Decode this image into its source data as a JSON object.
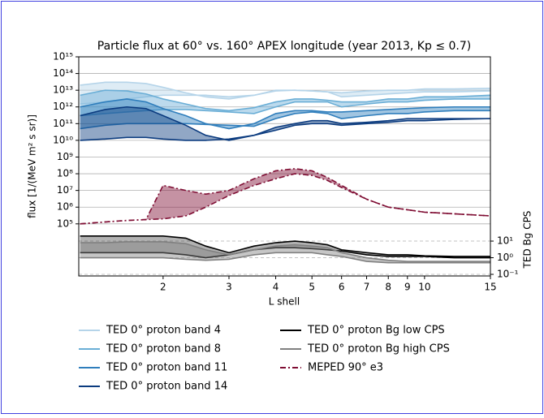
{
  "chart_data": {
    "type": "line",
    "title": "Particle flux at 60° vs. 160° APEX longitude (year 2013, Kp ≤ 0.7)",
    "x_label": "L shell",
    "y_label": "flux [1/(MeV m² s sr)]",
    "y2_label": "TED Bg CPS",
    "xscale": "log",
    "yscale": "log",
    "y2scale": "log",
    "grid": true,
    "y2_grid": "dashed",
    "xlim": [
      1.19,
      15
    ],
    "ylim": [
      76,
      1000000000000000.0
    ],
    "y2lim": [
      0.08,
      1200000000000.0
    ],
    "xticks": [
      2,
      3,
      4,
      5,
      6,
      7,
      8,
      9,
      10,
      15
    ],
    "yticks": [
      {
        "value": 100000.0,
        "label": "10⁵"
      },
      {
        "value": 1000000.0,
        "label": "10⁶"
      },
      {
        "value": 10000000.0,
        "label": "10⁷"
      },
      {
        "value": 100000000.0,
        "label": "10⁸"
      },
      {
        "value": 1000000000.0,
        "label": "10⁹"
      },
      {
        "value": 10000000000.0,
        "label": "10¹⁰"
      },
      {
        "value": 100000000000.0,
        "label": "10¹¹"
      },
      {
        "value": 1000000000000.0,
        "label": "10¹²"
      },
      {
        "value": 10000000000000.0,
        "label": "10¹³"
      },
      {
        "value": 100000000000000.0,
        "label": "10¹⁴"
      },
      {
        "value": 1000000000000000.0,
        "label": "10¹⁵"
      }
    ],
    "y2ticks": [
      {
        "value": 10,
        "label": "10¹"
      },
      {
        "value": 1,
        "label": "10⁰"
      },
      {
        "value": 0.1,
        "label": "10⁻¹"
      }
    ],
    "x": [
      1.2,
      1.4,
      1.6,
      1.8,
      2,
      2.3,
      2.6,
      3,
      3.5,
      4,
      4.5,
      5,
      5.5,
      6,
      7,
      8,
      9,
      10,
      12,
      15
    ],
    "series": [
      {
        "name": "TED 0° proton band 4",
        "color": "#b5d4e9",
        "linestyle": "solid",
        "values_60": [
          20000000000000.0,
          30000000000000.0,
          30000000000000.0,
          25000000000000.0,
          15000000000000.0,
          7000000000000.0,
          4000000000000.0,
          3000000000000.0,
          5000000000000.0,
          10000000000000.0,
          10000000000000.0,
          9000000000000.0,
          8000000000000.0,
          7000000000000.0,
          9000000000000.0,
          10000000000000.0,
          10000000000000.0,
          12000000000000.0,
          12000000000000.0,
          13000000000000.0
        ],
        "values_160": [
          1500000000000.0,
          2000000000000.0,
          3000000000000.0,
          4000000000000.0,
          5000000000000.0,
          5000000000000.0,
          5000000000000.0,
          4000000000000.0,
          5000000000000.0,
          9000000000000.0,
          10000000000000.0,
          9000000000000.0,
          8000000000000.0,
          4000000000000.0,
          5000000000000.0,
          6000000000000.0,
          7000000000000.0,
          8000000000000.0,
          8000000000000.0,
          9000000000000.0
        ]
      },
      {
        "name": "TED 0° proton band 8",
        "color": "#6aaed6",
        "linestyle": "solid",
        "values_60": [
          5000000000000.0,
          10000000000000.0,
          9000000000000.0,
          6000000000000.0,
          3000000000000.0,
          1500000000000.0,
          800000000000.0,
          600000000000.0,
          900000000000.0,
          2000000000000.0,
          3000000000000.0,
          3000000000000.0,
          2500000000000.0,
          2000000000000.0,
          2000000000000.0,
          3000000000000.0,
          3000000000000.0,
          4000000000000.0,
          4000000000000.0,
          5000000000000.0
        ],
        "values_160": [
          300000000000.0,
          400000000000.0,
          500000000000.0,
          600000000000.0,
          700000000000.0,
          700000000000.0,
          600000000000.0,
          500000000000.0,
          400000000000.0,
          1000000000000.0,
          2000000000000.0,
          2000000000000.0,
          2000000000000.0,
          1000000000000.0,
          1500000000000.0,
          2000000000000.0,
          2000000000000.0,
          2500000000000.0,
          3000000000000.0,
          3000000000000.0
        ]
      },
      {
        "name": "TED 0° proton band 11",
        "color": "#2f7ebc",
        "linestyle": "solid",
        "values_60": [
          1000000000000.0,
          2000000000000.0,
          3000000000000.0,
          2000000000000.0,
          800000000000.0,
          300000000000.0,
          100000000000.0,
          50000000000.0,
          100000000000.0,
          400000000000.0,
          600000000000.0,
          600000000000.0,
          500000000000.0,
          500000000000.0,
          600000000000.0,
          700000000000.0,
          800000000000.0,
          900000000000.0,
          1000000000000.0,
          1000000000000.0
        ],
        "values_160": [
          50000000000.0,
          80000000000.0,
          100000000000.0,
          100000000000.0,
          100000000000.0,
          100000000000.0,
          90000000000.0,
          80000000000.0,
          70000000000.0,
          200000000000.0,
          400000000000.0,
          500000000000.0,
          400000000000.0,
          200000000000.0,
          300000000000.0,
          400000000000.0,
          400000000000.0,
          500000000000.0,
          600000000000.0,
          600000000000.0
        ]
      },
      {
        "name": "TED 0° proton band 14",
        "color": "#0b3b7f",
        "linestyle": "solid",
        "values_60": [
          300000000000.0,
          700000000000.0,
          1000000000000.0,
          800000000000.0,
          300000000000.0,
          80000000000.0,
          20000000000.0,
          10000000000.0,
          20000000000.0,
          60000000000.0,
          100000000000.0,
          150000000000.0,
          150000000000.0,
          100000000000.0,
          120000000000.0,
          150000000000.0,
          200000000000.0,
          200000000000.0,
          200000000000.0,
          200000000000.0
        ],
        "values_160": [
          10000000000.0,
          12000000000.0,
          15000000000.0,
          15000000000.0,
          12000000000.0,
          10000000000.0,
          10000000000.0,
          12000000000.0,
          20000000000.0,
          40000000000.0,
          80000000000.0,
          100000000000.0,
          100000000000.0,
          80000000000.0,
          100000000000.0,
          120000000000.0,
          150000000000.0,
          150000000000.0,
          180000000000.0,
          200000000000.0
        ]
      },
      {
        "name": "TED 0° proton Bg low CPS",
        "color": "#000000",
        "linestyle": "solid",
        "axis": "y2",
        "values_60": [
          2,
          2,
          2,
          2,
          2,
          1.5,
          1,
          1.5,
          3,
          4,
          4,
          3.5,
          3,
          2.5,
          1.5,
          1.2,
          1.2,
          1.2,
          1,
          1
        ],
        "values_160": [
          20,
          20,
          20,
          20,
          20,
          15,
          5,
          2,
          5,
          8,
          10,
          8,
          6,
          3,
          2,
          1.5,
          1.5,
          1.3,
          1.2,
          1.2
        ]
      },
      {
        "name": "TED 0° proton Bg high CPS",
        "color": "#808080",
        "linestyle": "solid",
        "axis": "y2",
        "values_60": [
          1,
          1,
          1,
          1,
          1,
          0.8,
          0.7,
          0.8,
          1.5,
          2,
          2,
          2,
          1.5,
          1.2,
          0.6,
          0.5,
          0.5,
          0.5,
          0.5,
          0.5
        ],
        "values_160": [
          8,
          8,
          9,
          9,
          9,
          7,
          3,
          1.5,
          3,
          5,
          6,
          5,
          4,
          2,
          1,
          0.7,
          0.6,
          0.6,
          0.6,
          0.6
        ]
      },
      {
        "name": "MEPED 90° e3",
        "color": "#7f0d33",
        "linestyle": "dashdot",
        "values_60": [
          100000.0,
          130000.0,
          160000.0,
          180000.0,
          200000.0,
          300000.0,
          1000000.0,
          5000000.0,
          20000000.0,
          50000000.0,
          100000000.0,
          80000000.0,
          40000000.0,
          15000000.0,
          3000000.0,
          1000000.0,
          700000.0,
          500000.0,
          400000.0,
          300000.0
        ],
        "values_160": [
          100000.0,
          130000.0,
          160000.0,
          180000.0,
          20000000.0,
          10000000.0,
          6000000.0,
          10000000.0,
          50000000.0,
          150000000.0,
          200000000.0,
          150000000.0,
          60000000.0,
          20000000.0,
          3000000.0,
          1000000.0,
          700000.0,
          500000.0,
          400000.0,
          300000.0
        ]
      }
    ]
  }
}
